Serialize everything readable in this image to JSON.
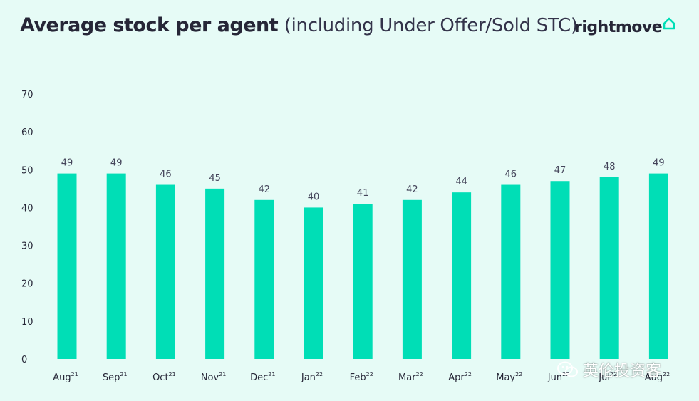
{
  "header": {
    "title_bold": "Average stock per agent",
    "title_rest": "(including Under Offer/Sold STC)",
    "logo_text": "rightmove"
  },
  "watermark": {
    "text": "英伦投资客",
    "icon": "wechat-icon"
  },
  "colors": {
    "background": "#e6fbf6",
    "bar": "#00deb6",
    "text": "#262637"
  },
  "chart_data": {
    "type": "bar",
    "title": "Average stock per agent (including Under Offer/Sold STC)",
    "xlabel": "",
    "ylabel": "",
    "ylim": [
      0,
      70
    ],
    "yticks": [
      0,
      10,
      20,
      30,
      40,
      50,
      60,
      70
    ],
    "categories": [
      {
        "month": "Aug",
        "year": "21"
      },
      {
        "month": "Sep",
        "year": "21"
      },
      {
        "month": "Oct",
        "year": "21"
      },
      {
        "month": "Nov",
        "year": "21"
      },
      {
        "month": "Dec",
        "year": "21"
      },
      {
        "month": "Jan",
        "year": "22"
      },
      {
        "month": "Feb",
        "year": "22"
      },
      {
        "month": "Mar",
        "year": "22"
      },
      {
        "month": "Apr",
        "year": "22"
      },
      {
        "month": "May",
        "year": "22"
      },
      {
        "month": "Jun",
        "year": "22"
      },
      {
        "month": "Jul",
        "year": "22"
      },
      {
        "month": "Aug",
        "year": "22"
      }
    ],
    "values": [
      49,
      49,
      46,
      45,
      42,
      40,
      41,
      42,
      44,
      46,
      47,
      48,
      49
    ],
    "grid": false,
    "legend": "none"
  }
}
